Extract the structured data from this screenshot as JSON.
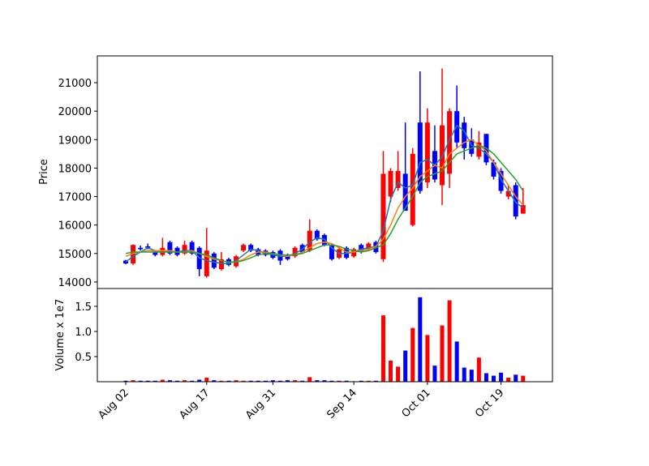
{
  "chart_data": [
    {
      "type": "candlestick",
      "ylabel": "Price",
      "open": [
        14750,
        14650,
        15200,
        15250,
        15050,
        14950,
        15400,
        15200,
        15000,
        15400,
        15200,
        14200,
        15000,
        14450,
        14800,
        14550,
        15100,
        15300,
        15150,
        15100,
        15050,
        15100,
        14950,
        14900,
        15300,
        15100,
        15800,
        15650,
        15300,
        14850,
        15200,
        14900,
        15300,
        15150,
        15400,
        14800,
        17000,
        17300,
        17800,
        16000,
        19600,
        17500,
        18600,
        17400,
        17800,
        20000,
        19600,
        19000,
        18400,
        19200,
        18200,
        17900,
        17000,
        17400,
        16400
      ],
      "high": [
        14780,
        15320,
        15280,
        15350,
        15100,
        15550,
        15450,
        15250,
        15450,
        15450,
        15250,
        15900,
        15050,
        15050,
        14850,
        14950,
        15350,
        15350,
        15200,
        15150,
        15100,
        15150,
        15000,
        15250,
        15350,
        16200,
        15850,
        15700,
        15350,
        15200,
        15250,
        15200,
        15350,
        15400,
        15450,
        18600,
        18000,
        18600,
        19600,
        18700,
        21400,
        20100,
        19500,
        21500,
        20100,
        20900,
        19800,
        19400,
        19300,
        19200,
        18300,
        18000,
        17400,
        17500,
        17300
      ],
      "low": [
        14620,
        14600,
        15100,
        15150,
        14900,
        14900,
        14950,
        14900,
        14950,
        14950,
        14200,
        14150,
        14450,
        14400,
        14550,
        14500,
        15050,
        15050,
        14900,
        14900,
        14800,
        14600,
        14750,
        14850,
        15000,
        15050,
        15450,
        15250,
        14750,
        14800,
        14800,
        14850,
        15000,
        15100,
        15000,
        14700,
        16800,
        17200,
        16500,
        15950,
        17100,
        17300,
        17500,
        16700,
        17300,
        18700,
        18300,
        18400,
        18300,
        18100,
        17600,
        17100,
        16900,
        16200,
        16400
      ],
      "close": [
        14650,
        15300,
        15150,
        15200,
        14950,
        15200,
        15000,
        14950,
        15300,
        15000,
        14450,
        15100,
        14500,
        14800,
        14600,
        14900,
        15300,
        15100,
        14950,
        14950,
        14850,
        14750,
        14800,
        15200,
        15050,
        15800,
        15500,
        15300,
        14800,
        15150,
        14850,
        15150,
        15050,
        15350,
        15050,
        17800,
        17900,
        17900,
        16500,
        18500,
        17200,
        19600,
        17600,
        19500,
        20000,
        18900,
        18700,
        18500,
        18900,
        18200,
        17700,
        17200,
        17200,
        16300,
        16700
      ],
      "up_color": "#ff0000",
      "down_color": "#0000ff",
      "lines": [
        {
          "color": "#1f77b4",
          "values": [
            14700,
            14900,
            15050,
            15200,
            15100,
            15050,
            15100,
            15050,
            15100,
            15100,
            14850,
            14750,
            14700,
            14650,
            14650,
            14750,
            14950,
            15150,
            15100,
            15000,
            14950,
            14900,
            14900,
            15000,
            15150,
            15400,
            15550,
            15500,
            15200,
            15000,
            15000,
            15050,
            15150,
            15200,
            15250,
            15800,
            16900,
            17500,
            17300,
            17400,
            18200,
            18300,
            18100,
            18400,
            19000,
            19500,
            19300,
            18800,
            18700,
            18500,
            18200,
            17600,
            17200,
            16800,
            16600
          ]
        },
        {
          "color": "#ff7f0e",
          "values": [
            14900,
            15000,
            15050,
            15100,
            15100,
            15100,
            15100,
            15050,
            15050,
            15100,
            15000,
            14900,
            14800,
            14750,
            14700,
            14700,
            14800,
            14950,
            15050,
            15050,
            15000,
            14950,
            14900,
            14950,
            15050,
            15200,
            15350,
            15400,
            15350,
            15200,
            15050,
            15050,
            15100,
            15150,
            15250,
            15500,
            16000,
            16600,
            17000,
            17300,
            17700,
            17900,
            18100,
            18000,
            18500,
            18700,
            18900,
            19000,
            18800,
            18600,
            18200,
            17800,
            17400,
            17000,
            16700
          ]
        },
        {
          "color": "#2ca02c",
          "values": [
            15000,
            15050,
            15050,
            15050,
            15050,
            15050,
            15050,
            15050,
            15050,
            15050,
            15000,
            14950,
            14850,
            14750,
            14700,
            14700,
            14750,
            14850,
            14950,
            15000,
            15000,
            14950,
            14950,
            14950,
            15000,
            15100,
            15200,
            15300,
            15300,
            15250,
            15150,
            15100,
            15050,
            15100,
            15200,
            15300,
            15700,
            16200,
            16600,
            17000,
            17500,
            17700,
            17800,
            17900,
            18200,
            18500,
            18600,
            18700,
            18800,
            18700,
            18500,
            18200,
            17900,
            17600,
            17200
          ]
        }
      ],
      "ylim": [
        13770,
        21940
      ],
      "yticks": [
        14000,
        15000,
        16000,
        17000,
        18000,
        19000,
        20000,
        21000
      ]
    },
    {
      "type": "bar",
      "ylabel": "Volume x 1e7",
      "categories": [
        "Aug 02",
        null,
        null,
        null,
        null,
        null,
        null,
        null,
        null,
        null,
        null,
        "Aug 17",
        null,
        null,
        null,
        null,
        null,
        null,
        null,
        null,
        "Aug 31",
        null,
        null,
        null,
        null,
        null,
        null,
        null,
        null,
        null,
        null,
        "Sep 14",
        null,
        null,
        null,
        null,
        null,
        null,
        null,
        null,
        null,
        "Oct 01",
        null,
        null,
        null,
        null,
        null,
        null,
        null,
        null,
        null,
        "Oct 19",
        null,
        null,
        null
      ],
      "values": [
        0.02,
        0.03,
        0.02,
        0.02,
        0.02,
        0.04,
        0.03,
        0.02,
        0.03,
        0.02,
        0.04,
        0.08,
        0.03,
        0.02,
        0.02,
        0.03,
        0.02,
        0.02,
        0.02,
        0.02,
        0.03,
        0.02,
        0.03,
        0.03,
        0.02,
        0.09,
        0.03,
        0.03,
        0.02,
        0.02,
        0.02,
        0.01,
        0.02,
        0.02,
        0.02,
        1.32,
        0.42,
        0.3,
        0.62,
        1.07,
        1.68,
        0.93,
        0.32,
        1.12,
        1.62,
        0.8,
        0.28,
        0.24,
        0.48,
        0.17,
        0.12,
        0.18,
        0.08,
        0.14,
        0.12
      ],
      "ylim": [
        0,
        1.855
      ],
      "yticks": [
        {
          "value": 0.5,
          "label": "0.5"
        },
        {
          "value": 1.0,
          "label": "1.0"
        },
        {
          "value": 1.5,
          "label": "1.5"
        }
      ]
    }
  ]
}
